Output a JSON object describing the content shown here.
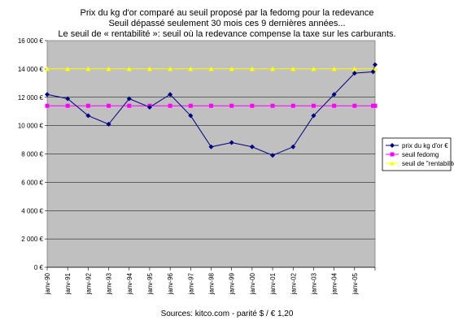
{
  "chart_data": {
    "type": "line",
    "title": "Prix du kg d'or comparé au seuil proposé par la fedomg pour la redevance",
    "subtitle_1": "Seuil dépassé seulement 30 mois ces 9 dernières années...",
    "subtitle_2": "Le seuil de « rentabilité »: seuil où la redevance compense la taxe sur les carburants.",
    "source": "Sources: kitco.com - parité $ / € 1,20",
    "ylim": [
      0,
      16000
    ],
    "y_ticks": [
      "0 €",
      "2 000 €",
      "4 000 €",
      "6 000 €",
      "8 000 €",
      "10 000 €",
      "12 000 €",
      "14 000 €",
      "16 000 €"
    ],
    "x_tick_labels": [
      "janv-90",
      "janv-91",
      "janv-92",
      "janv-93",
      "janv-94",
      "janv-95",
      "janv-96",
      "janv-97",
      "janv-98",
      "janv-99",
      "janv-00",
      "janv-01",
      "janv-02",
      "janv-03",
      "janv-04",
      "janv-05"
    ],
    "plot_background": "#c0c0c0",
    "grid": true,
    "legend_placement": "right",
    "series": [
      {
        "name": "prix du kg d'or €",
        "color": "#000080",
        "marker": "diamond",
        "x": [
          0,
          1,
          2,
          3,
          4,
          5,
          6,
          7,
          8,
          9,
          10,
          11,
          12,
          13,
          14,
          15,
          15.9,
          16
        ],
        "values": [
          12200,
          11900,
          10700,
          10100,
          11900,
          11300,
          12200,
          10700,
          8500,
          8800,
          8500,
          7900,
          8500,
          10700,
          12200,
          13700,
          13800,
          14300
        ]
      },
      {
        "name": "seuil fedomg",
        "color": "#ff00ff",
        "marker": "square",
        "x": [
          0,
          1,
          2,
          3,
          4,
          5,
          6,
          7,
          8,
          9,
          10,
          11,
          12,
          13,
          14,
          15,
          15.9,
          16
        ],
        "values": [
          11400,
          11400,
          11400,
          11400,
          11400,
          11400,
          11400,
          11400,
          11400,
          11400,
          11400,
          11400,
          11400,
          11400,
          11400,
          11400,
          11400,
          11400
        ]
      },
      {
        "name": "seuil de \"rentabilité\"",
        "color": "#ffff00",
        "marker": "triangle",
        "x": [
          0,
          1,
          2,
          3,
          4,
          5,
          6,
          7,
          8,
          9,
          10,
          11,
          12,
          13,
          14,
          15,
          16
        ],
        "values": [
          14000,
          14000,
          14000,
          14000,
          14000,
          14000,
          14000,
          14000,
          14000,
          14000,
          14000,
          14000,
          14000,
          14000,
          14000,
          14000,
          14000
        ]
      }
    ]
  }
}
